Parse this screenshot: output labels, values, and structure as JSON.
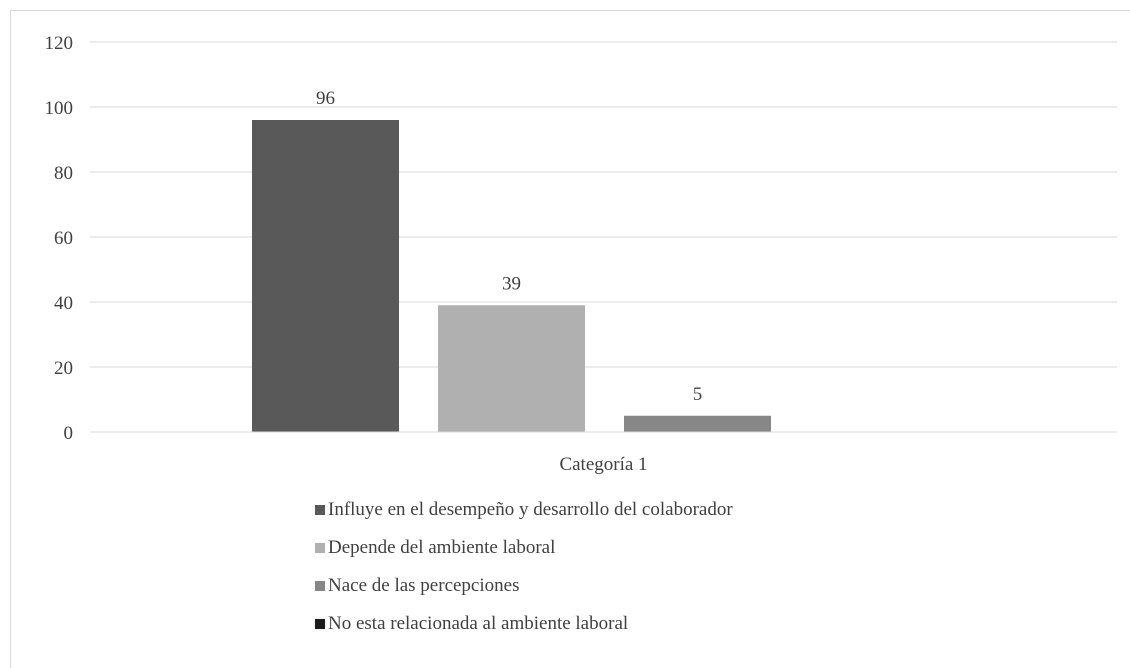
{
  "chart_data": {
    "type": "bar",
    "title": "",
    "xlabel": "",
    "ylabel": "",
    "categories": [
      "Categoría 1"
    ],
    "series": [
      {
        "name": "Influye en el desempeño y desarrollo del colaborador",
        "values": [
          96
        ],
        "color": "#595959"
      },
      {
        "name": "Depende del ambiente laboral",
        "values": [
          39
        ],
        "color": "#b0b0b0"
      },
      {
        "name": "Nace de las percepciones",
        "values": [
          5
        ],
        "color": "#878787"
      },
      {
        "name": "No esta relacionada al ambiente laboral",
        "values": [
          0
        ],
        "color": "#1a1a1a"
      }
    ],
    "data_labels": [
      "96",
      "39",
      "5",
      ""
    ],
    "ylim": [
      0,
      120
    ],
    "yticks": [
      "0",
      "20",
      "40",
      "60",
      "80",
      "100",
      "120"
    ],
    "grid": true,
    "legend_position": "bottom"
  }
}
